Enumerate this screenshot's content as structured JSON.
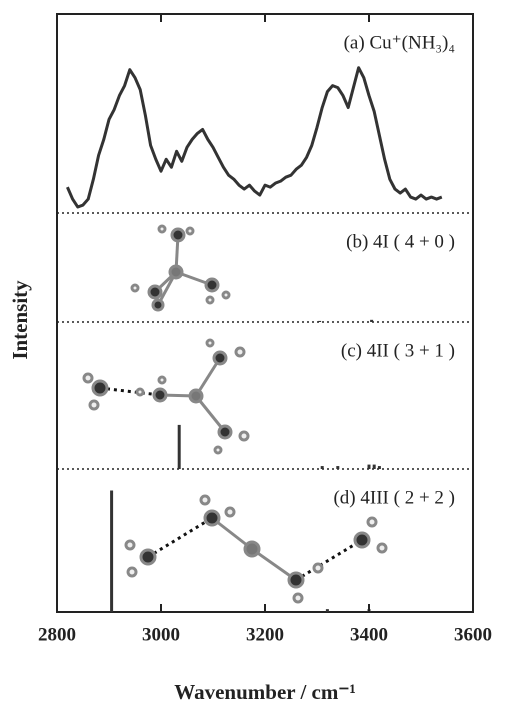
{
  "chart_data": [
    {
      "type": "line",
      "label": "(a) Cu⁺(NH₃)₄",
      "ylabel": "Intensity",
      "color": "#333333",
      "xlim": [
        2800,
        3600
      ],
      "ylim": [
        0,
        100
      ],
      "x": [
        2820,
        2830,
        2840,
        2850,
        2860,
        2870,
        2880,
        2890,
        2900,
        2910,
        2920,
        2930,
        2940,
        2950,
        2960,
        2970,
        2980,
        2990,
        3000,
        3010,
        3020,
        3030,
        3040,
        3050,
        3060,
        3070,
        3080,
        3090,
        3100,
        3110,
        3120,
        3130,
        3140,
        3150,
        3160,
        3170,
        3180,
        3190,
        3200,
        3210,
        3220,
        3230,
        3240,
        3250,
        3260,
        3270,
        3280,
        3290,
        3300,
        3310,
        3320,
        3330,
        3340,
        3350,
        3360,
        3370,
        3380,
        3390,
        3400,
        3410,
        3420,
        3430,
        3440,
        3450,
        3460,
        3470,
        3480,
        3490,
        3500,
        3510,
        3520,
        3530,
        3540
      ],
      "values": [
        13,
        7,
        3,
        4,
        7,
        17,
        29,
        37,
        47,
        52,
        59,
        64,
        72,
        68,
        62,
        49,
        34,
        27,
        21,
        27,
        23,
        31,
        26,
        33,
        37,
        40,
        42,
        37,
        33,
        28,
        23,
        19,
        17,
        14,
        12,
        14,
        11,
        9,
        14,
        13,
        15,
        16,
        18,
        19,
        22,
        24,
        28,
        34,
        43,
        53,
        61,
        64,
        63,
        59,
        53,
        63,
        73,
        68,
        59,
        51,
        39,
        27,
        17,
        12,
        10,
        12,
        8,
        7,
        9,
        7,
        8,
        7,
        8
      ]
    },
    {
      "type": "stick",
      "label": "(b) 4I ( 4 + 0 )",
      "color": "#333333",
      "xlim": [
        2800,
        3600
      ],
      "ylim": [
        0,
        100
      ],
      "x": [
        3305,
        3405
      ],
      "values": [
        1,
        2
      ]
    },
    {
      "type": "stick",
      "label": "(c) 4II ( 3 + 1 )",
      "color": "#333333",
      "xlim": [
        2800,
        3600
      ],
      "ylim": [
        0,
        100
      ],
      "x": [
        3035,
        3310,
        3340,
        3400,
        3410,
        3420
      ],
      "values": [
        30,
        2,
        2,
        3,
        3,
        2
      ]
    },
    {
      "type": "stick",
      "label": "(d) 4III ( 2 + 2 )",
      "color": "#333333",
      "xlim": [
        2800,
        3600
      ],
      "ylim": [
        0,
        100
      ],
      "x": [
        2905,
        3320,
        3400
      ],
      "values": [
        85,
        2,
        2
      ],
      "xlabel": "Wavenumber / cm⁻¹",
      "xticks": [
        2800,
        3000,
        3200,
        3400,
        3600
      ]
    }
  ]
}
